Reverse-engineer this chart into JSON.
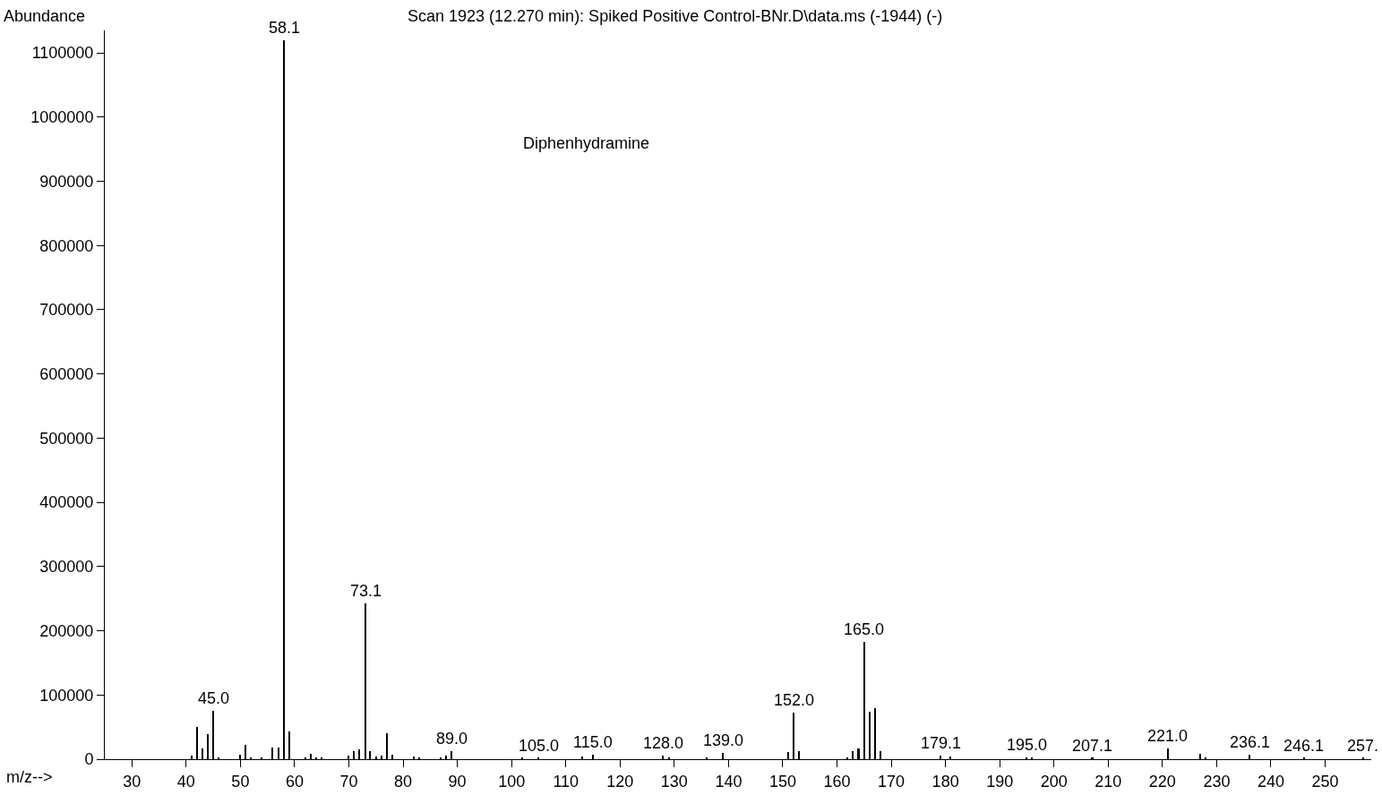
{
  "chart_data": {
    "type": "bar",
    "title": "Scan 1923 (12.270 min): Spiked Positive Control-BNr.D\\data.ms (-1944) (-)",
    "xlabel": "m/z-->",
    "ylabel": "Abundance",
    "x": [
      41,
      42,
      43,
      44,
      45.0,
      46,
      50,
      51,
      52,
      54,
      56,
      57,
      58.1,
      59,
      62,
      63,
      64,
      65,
      70,
      71,
      72,
      73.1,
      74,
      75,
      76,
      77,
      78,
      82,
      83,
      87,
      88,
      89.0,
      102,
      105.0,
      113,
      115.0,
      128.0,
      129,
      136,
      139.0,
      151,
      152.0,
      153,
      162,
      163,
      164,
      165.0,
      166,
      167,
      168,
      179.1,
      181,
      195.0,
      196,
      207.1,
      221.0,
      227,
      228,
      236.1,
      246.1,
      257
    ],
    "values": [
      5000,
      50000,
      17000,
      39000,
      75000,
      3000,
      7000,
      22000,
      3000,
      3000,
      18000,
      18000,
      1120000,
      43000,
      3000,
      9000,
      2000,
      2000,
      5000,
      12000,
      16000,
      243000,
      12000,
      4000,
      5000,
      40000,
      7000,
      4000,
      3000,
      2000,
      5000,
      12000,
      2000,
      2000,
      4000,
      7000,
      5000,
      3000,
      2000,
      10000,
      11000,
      72000,
      12000,
      3000,
      12000,
      17000,
      183000,
      74000,
      79000,
      12000,
      5000,
      4000,
      3000,
      3000,
      2000,
      17000,
      9000,
      3000,
      7000,
      2000,
      2000
    ],
    "color": "#000000",
    "xlim": [
      25,
      258.5
    ],
    "ylim": [
      0,
      1135000
    ],
    "xticks": [
      30,
      40,
      50,
      60,
      70,
      80,
      90,
      100,
      110,
      120,
      130,
      140,
      150,
      160,
      170,
      180,
      190,
      200,
      210,
      220,
      230,
      240,
      250
    ],
    "yticks": [
      0,
      100000,
      200000,
      300000,
      400000,
      500000,
      600000,
      700000,
      800000,
      900000,
      1000000,
      1100000
    ],
    "grid": false,
    "annotations": [
      {
        "text": "45.0",
        "x": 45.0,
        "y": 75000
      },
      {
        "text": "58.1",
        "x": 58.1,
        "y": 1120000
      },
      {
        "text": "73.1",
        "x": 73.1,
        "y": 243000
      },
      {
        "text": "89.0",
        "x": 89.0,
        "y": 12000
      },
      {
        "text": "105.0",
        "x": 105.0,
        "y": 2000
      },
      {
        "text": "115.0",
        "x": 115.0,
        "y": 7000
      },
      {
        "text": "128.0",
        "x": 128.0,
        "y": 5000
      },
      {
        "text": "139.0",
        "x": 139.0,
        "y": 10000
      },
      {
        "text": "152.0",
        "x": 152.0,
        "y": 72000
      },
      {
        "text": "165.0",
        "x": 165.0,
        "y": 183000
      },
      {
        "text": "179.1",
        "x": 179.1,
        "y": 5000
      },
      {
        "text": "195.0",
        "x": 195.0,
        "y": 3000
      },
      {
        "text": "207.1",
        "x": 207.1,
        "y": 2000
      },
      {
        "text": "221.0",
        "x": 221.0,
        "y": 17000
      },
      {
        "text": "236.1",
        "x": 236.1,
        "y": 7000
      },
      {
        "text": "246.1",
        "x": 246.1,
        "y": 2000
      },
      {
        "text": "257.",
        "x": 257,
        "y": 2000
      },
      "Diphenhydramine"
    ]
  }
}
